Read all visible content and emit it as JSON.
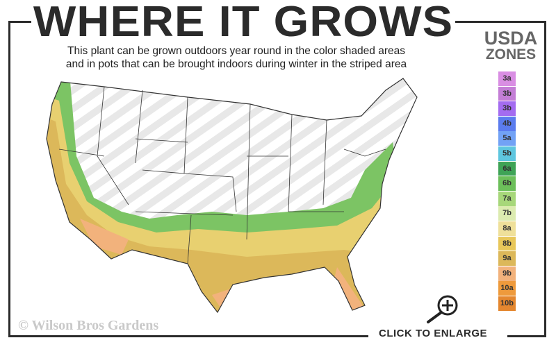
{
  "header": {
    "title": "WHERE IT GROWS",
    "subtitle_line1": "This plant can be grown outdoors year round in the color shaded areas",
    "subtitle_line2": "and in pots that can be brought indoors during winter in the striped area"
  },
  "legend": {
    "title_line1": "USDA",
    "title_line2": "ZONES",
    "zones": [
      {
        "label": "3a",
        "color": "#d98ee3"
      },
      {
        "label": "3b",
        "color": "#c47ed6"
      },
      {
        "label": "3b",
        "color": "#a46cf0"
      },
      {
        "label": "4b",
        "color": "#5b7cee"
      },
      {
        "label": "5a",
        "color": "#72a2f5"
      },
      {
        "label": "5b",
        "color": "#5ec6df"
      },
      {
        "label": "6a",
        "color": "#3ea356"
      },
      {
        "label": "6b",
        "color": "#6cbf5a"
      },
      {
        "label": "7a",
        "color": "#a7d77a"
      },
      {
        "label": "7b",
        "color": "#dcebb0"
      },
      {
        "label": "8a",
        "color": "#efe09a"
      },
      {
        "label": "8b",
        "color": "#e8c75a"
      },
      {
        "label": "9a",
        "color": "#dcb85a"
      },
      {
        "label": "9b",
        "color": "#f2b27c"
      },
      {
        "label": "10a",
        "color": "#ee9a3c"
      },
      {
        "label": "10b",
        "color": "#e4872f"
      }
    ]
  },
  "map": {
    "shaded_colors": [
      "#7cc464",
      "#a7d77a",
      "#e8d070",
      "#dcb85a",
      "#f2b27c"
    ],
    "striped_color": "#e6e6e6"
  },
  "watermark": "© Wilson Bros Gardens",
  "enlarge": {
    "label": "CLICK TO ENLARGE",
    "icon": "zoom-in-icon"
  }
}
